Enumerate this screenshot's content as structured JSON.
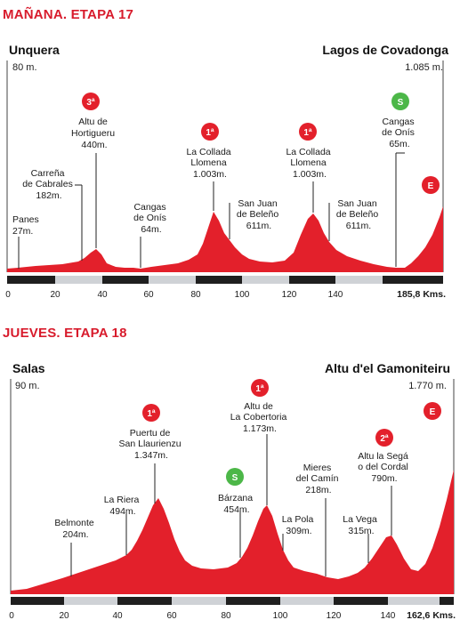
{
  "colors": {
    "accent": "#d81b2c",
    "climb": "#e3202b",
    "sprint": "#4cb748",
    "bar_dark": "#1f1f1f",
    "bar_light": "#cfd2d6"
  },
  "stage17": {
    "title": "MAÑANA. ETAPA 17",
    "start": {
      "name": "Unquera",
      "alt": "80 m."
    },
    "finish": {
      "name": "Lagos de Covadonga",
      "alt": "1.085 m."
    },
    "distance": "185,8 Kms.",
    "ticks": [
      "0",
      "20",
      "40",
      "60",
      "80",
      "100",
      "120",
      "140"
    ],
    "labels": {
      "panes": [
        "Panes",
        "27m."
      ],
      "carrena": [
        "Carreña",
        "de Cabrales",
        "182m."
      ],
      "hortigueru": [
        "Altu de",
        "Hortigueru",
        "440m."
      ],
      "cangas1": [
        "Cangas",
        "de Onís",
        "64m."
      ],
      "collada1": [
        "La Collada",
        "Llomena",
        "1.003m."
      ],
      "sanjuan1": [
        "San Juan",
        "de Beleño",
        "611m."
      ],
      "collada2": [
        "La Collada",
        "Llomena",
        "1.003m."
      ],
      "sanjuan2": [
        "San Juan",
        "de Beleño",
        "611m."
      ],
      "cangas2": [
        "Cangas",
        "de Onís",
        "65m."
      ]
    },
    "badges": {
      "hortigueru": "3ª",
      "collada1": "1ª",
      "collada2": "1ª",
      "cangas2": "S",
      "finish": "E"
    }
  },
  "stage18": {
    "title": "JUEVES. ETAPA 18",
    "start": {
      "name": "Salas",
      "alt": "90 m."
    },
    "finish": {
      "name": "Altu d'el Gamoniteiru",
      "alt": "1.770 m."
    },
    "distance": "162,6 Kms.",
    "ticks": [
      "0",
      "20",
      "40",
      "60",
      "80",
      "100",
      "120",
      "140"
    ],
    "labels": {
      "belmonte": [
        "Belmonte",
        "204m."
      ],
      "riera": [
        "La Riera",
        "494m."
      ],
      "llaurienzu": [
        "Puertu de",
        "San Llaurienzu",
        "1.347m."
      ],
      "barzana": [
        "Bárzana",
        "454m."
      ],
      "cobertoria": [
        "Altu de",
        "La Cobertoria",
        "1.173m."
      ],
      "pola": [
        "La Pola",
        "309m."
      ],
      "mieres": [
        "Mieres",
        "del Camín",
        "218m."
      ],
      "vega": [
        "La Vega",
        "315m."
      ],
      "sega": [
        "Altu la Segá",
        "o del Cordal",
        "790m."
      ]
    },
    "badges": {
      "llaurienzu": "1ª",
      "barzana": "S",
      "cobertoria": "1ª",
      "sega": "2ª",
      "finish": "E"
    }
  }
}
